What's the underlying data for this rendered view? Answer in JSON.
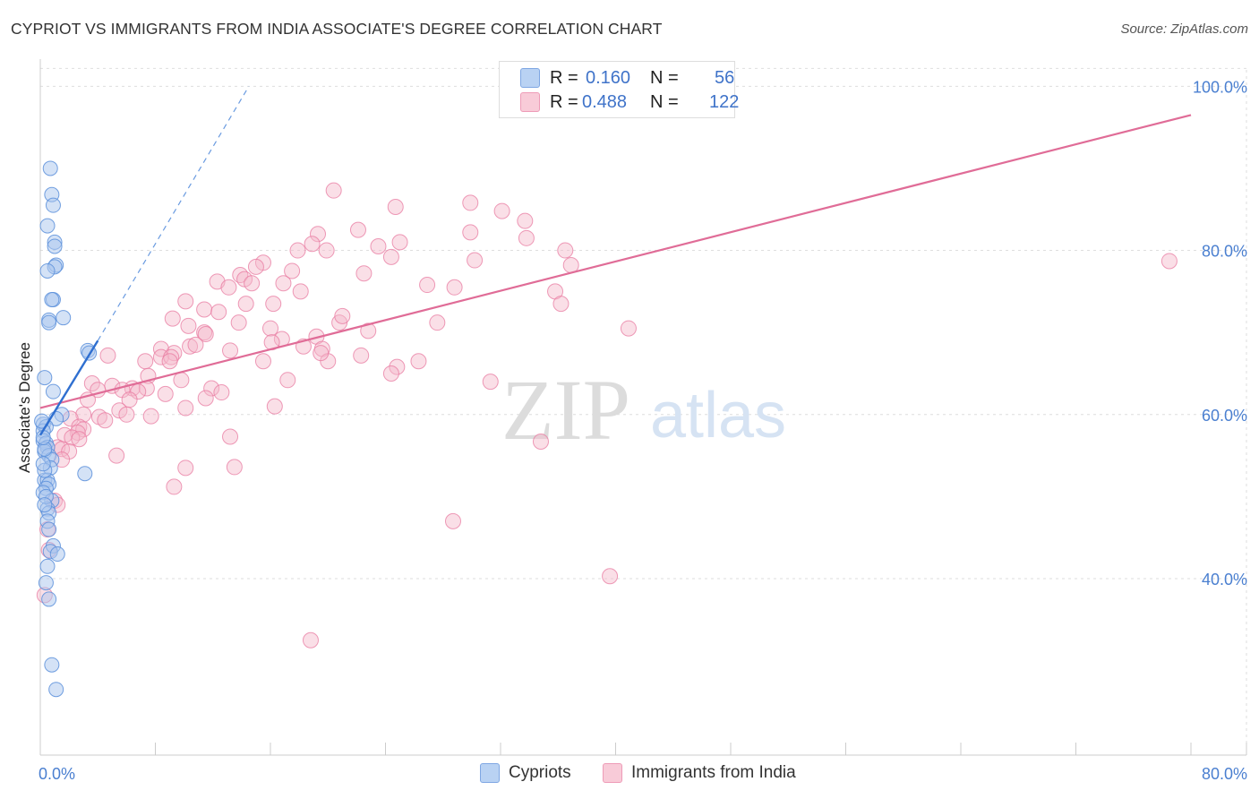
{
  "title": "CYPRIOT VS IMMIGRANTS FROM INDIA ASSOCIATE'S DEGREE CORRELATION CHART",
  "source": "Source: ZipAtlas.com",
  "watermark": {
    "zip": "ZIP",
    "atlas": "atlas"
  },
  "legend_top": [
    {
      "r_label": "R =",
      "r_value": "0.160",
      "n_label": "N =",
      "n_value": "56",
      "color": "#a9c6ee"
    },
    {
      "r_label": "R =",
      "r_value": "0.488",
      "n_label": "N =",
      "n_value": "122",
      "color": "#f5b8ca"
    }
  ],
  "legend_bottom": [
    {
      "label": "Cypriots",
      "color": "#a9c6ee"
    },
    {
      "label": "Immigrants from India",
      "color": "#f5b8ca"
    }
  ],
  "chart_data": {
    "type": "scatter",
    "title": "CYPRIOT VS IMMIGRANTS FROM INDIA ASSOCIATE'S DEGREE CORRELATION CHART",
    "xlabel": "",
    "ylabel": "Associate's Degree",
    "xlim": [
      0,
      80
    ],
    "ylim": [
      18.5,
      102
    ],
    "x_tick_labels": [
      {
        "value": 0,
        "label": "0.0%"
      },
      {
        "value": 80,
        "label": "80.0%"
      }
    ],
    "x_minor_ticks": [
      0,
      8,
      16,
      24,
      32,
      40,
      48,
      56,
      64,
      72,
      80
    ],
    "y_tick_labels": [
      {
        "value": 100,
        "label": "100.0%"
      },
      {
        "value": 80,
        "label": "80.0%"
      },
      {
        "value": 60,
        "label": "60.0%"
      },
      {
        "value": 40,
        "label": "40.0%"
      }
    ],
    "grid": true,
    "legend_position": "top-center",
    "series": [
      {
        "name": "Cypriots",
        "color": "#5b8fdb",
        "fill": "#a9c6ee",
        "trend": {
          "x0": 0,
          "y0": 57.5,
          "x1": 4,
          "y1": 69,
          "style": "solid",
          "color": "#2f6fd0"
        },
        "trend_extension": {
          "x0": 4,
          "y0": 69,
          "x1": 14.5,
          "y1": 100,
          "style": "dashed",
          "color": "#6a9be0"
        },
        "points": [
          [
            0.7,
            90
          ],
          [
            0.8,
            86.8
          ],
          [
            0.9,
            85.5
          ],
          [
            0.5,
            83
          ],
          [
            1.0,
            81
          ],
          [
            1.0,
            80.5
          ],
          [
            1.1,
            78.2
          ],
          [
            1.0,
            78
          ],
          [
            0.5,
            77.5
          ],
          [
            0.9,
            74
          ],
          [
            0.8,
            74
          ],
          [
            1.6,
            71.8
          ],
          [
            0.6,
            71.5
          ],
          [
            0.6,
            71.2
          ],
          [
            3.3,
            67.8
          ],
          [
            3.4,
            67.5
          ],
          [
            0.3,
            64.5
          ],
          [
            0.9,
            62.8
          ],
          [
            1.5,
            60
          ],
          [
            1.1,
            59.5
          ],
          [
            0.2,
            58.8
          ],
          [
            0.4,
            58.5
          ],
          [
            0.2,
            58
          ],
          [
            0.2,
            56.8
          ],
          [
            0.4,
            56.5
          ],
          [
            0.5,
            56
          ],
          [
            0.3,
            55.5
          ],
          [
            0.6,
            55
          ],
          [
            0.8,
            54.5
          ],
          [
            0.7,
            53.5
          ],
          [
            3.1,
            52.8
          ],
          [
            0.3,
            52
          ],
          [
            0.5,
            52
          ],
          [
            0.6,
            51.5
          ],
          [
            0.4,
            51
          ],
          [
            0.2,
            50.5
          ],
          [
            0.8,
            49.5
          ],
          [
            0.5,
            48.5
          ],
          [
            0.6,
            48
          ],
          [
            0.5,
            47
          ],
          [
            0.9,
            44
          ],
          [
            0.7,
            43.3
          ],
          [
            1.2,
            43
          ],
          [
            0.4,
            39.5
          ],
          [
            0.6,
            37.5
          ],
          [
            0.8,
            29.5
          ],
          [
            1.1,
            26.5
          ],
          [
            0.3,
            55.8
          ],
          [
            0.2,
            57.2
          ],
          [
            0.1,
            59.2
          ],
          [
            0.3,
            53.2
          ],
          [
            0.4,
            50
          ],
          [
            0.2,
            54
          ],
          [
            0.6,
            46
          ],
          [
            0.3,
            49
          ],
          [
            0.5,
            41.5
          ]
        ]
      },
      {
        "name": "Immigrants from India",
        "color": "#e87aa0",
        "fill": "#f5b8ca",
        "trend": {
          "x0": 0,
          "y0": 60.8,
          "x1": 80,
          "y1": 96.5,
          "style": "solid",
          "color": "#e06c97"
        },
        "points": [
          [
            20.4,
            87.3
          ],
          [
            29.9,
            85.8
          ],
          [
            24.7,
            85.3
          ],
          [
            32.1,
            84.8
          ],
          [
            33.7,
            83.6
          ],
          [
            22.1,
            82.5
          ],
          [
            29.9,
            82.2
          ],
          [
            19.3,
            82
          ],
          [
            33.8,
            81.5
          ],
          [
            18.9,
            80.8
          ],
          [
            25.0,
            81
          ],
          [
            23.5,
            80.5
          ],
          [
            17.9,
            80
          ],
          [
            19.9,
            80
          ],
          [
            36.5,
            80
          ],
          [
            24.4,
            79.2
          ],
          [
            30.2,
            78.8
          ],
          [
            36.9,
            78.2
          ],
          [
            15.5,
            78.5
          ],
          [
            15.0,
            78
          ],
          [
            17.5,
            77.5
          ],
          [
            22.5,
            77.2
          ],
          [
            13.9,
            77
          ],
          [
            14.2,
            76.5
          ],
          [
            12.3,
            76.2
          ],
          [
            14.7,
            76
          ],
          [
            16.9,
            76
          ],
          [
            26.9,
            75.8
          ],
          [
            28.8,
            75.5
          ],
          [
            13.1,
            75.5
          ],
          [
            18.1,
            75
          ],
          [
            35.8,
            75
          ],
          [
            10.1,
            73.8
          ],
          [
            14.3,
            73.5
          ],
          [
            16.2,
            73.5
          ],
          [
            36.2,
            73.5
          ],
          [
            11.4,
            72.8
          ],
          [
            12.4,
            72.5
          ],
          [
            9.2,
            71.7
          ],
          [
            13.8,
            71.2
          ],
          [
            20.8,
            71.2
          ],
          [
            27.6,
            71.2
          ],
          [
            10.3,
            70.8
          ],
          [
            16.0,
            70.5
          ],
          [
            22.8,
            70.2
          ],
          [
            40.9,
            70.5
          ],
          [
            11.4,
            70
          ],
          [
            11.5,
            69.8
          ],
          [
            19.2,
            69.5
          ],
          [
            16.8,
            69.2
          ],
          [
            16.1,
            68.8
          ],
          [
            10.4,
            68.3
          ],
          [
            10.8,
            68.5
          ],
          [
            18.3,
            68.3
          ],
          [
            19.6,
            68
          ],
          [
            8.4,
            68
          ],
          [
            13.2,
            67.8
          ],
          [
            9.3,
            67.5
          ],
          [
            8.4,
            67
          ],
          [
            9.1,
            67
          ],
          [
            22.3,
            67.2
          ],
          [
            4.7,
            67.2
          ],
          [
            20.0,
            66.5
          ],
          [
            9.0,
            66.5
          ],
          [
            7.3,
            66.5
          ],
          [
            15.5,
            66.5
          ],
          [
            24.8,
            65.8
          ],
          [
            24.4,
            65
          ],
          [
            7.5,
            64.7
          ],
          [
            31.3,
            64
          ],
          [
            17.2,
            64.2
          ],
          [
            9.8,
            64.2
          ],
          [
            3.6,
            63.8
          ],
          [
            5.0,
            63.5
          ],
          [
            6.4,
            63.2
          ],
          [
            7.4,
            63.2
          ],
          [
            11.9,
            63.2
          ],
          [
            5.7,
            63
          ],
          [
            4.0,
            63
          ],
          [
            6.8,
            62.8
          ],
          [
            12.6,
            62.7
          ],
          [
            8.7,
            62.5
          ],
          [
            11.5,
            62
          ],
          [
            6.2,
            61.8
          ],
          [
            3.3,
            61.8
          ],
          [
            16.3,
            61
          ],
          [
            10.1,
            60.8
          ],
          [
            5.5,
            60.5
          ],
          [
            6.0,
            60
          ],
          [
            3.0,
            60
          ],
          [
            7.7,
            59.8
          ],
          [
            4.1,
            59.7
          ],
          [
            2.1,
            59.5
          ],
          [
            4.5,
            59.3
          ],
          [
            2.7,
            58.5
          ],
          [
            3.0,
            58.2
          ],
          [
            2.6,
            57.8
          ],
          [
            1.7,
            57.5
          ],
          [
            2.2,
            57.2
          ],
          [
            13.2,
            57.3
          ],
          [
            2.7,
            57
          ],
          [
            34.8,
            56.7
          ],
          [
            1.2,
            56
          ],
          [
            1.5,
            55.8
          ],
          [
            2.0,
            55.5
          ],
          [
            5.3,
            55
          ],
          [
            1.5,
            54.5
          ],
          [
            10.1,
            53.5
          ],
          [
            13.5,
            53.6
          ],
          [
            9.3,
            51.2
          ],
          [
            1.0,
            49.5
          ],
          [
            1.2,
            49
          ],
          [
            28.7,
            47
          ],
          [
            0.5,
            46
          ],
          [
            0.6,
            43.5
          ],
          [
            39.6,
            40.3
          ],
          [
            0.3,
            38
          ],
          [
            18.8,
            32.5
          ],
          [
            78.5,
            78.7
          ],
          [
            19.5,
            67.5
          ],
          [
            21.0,
            72.0
          ],
          [
            26.3,
            66.5
          ]
        ]
      }
    ]
  }
}
